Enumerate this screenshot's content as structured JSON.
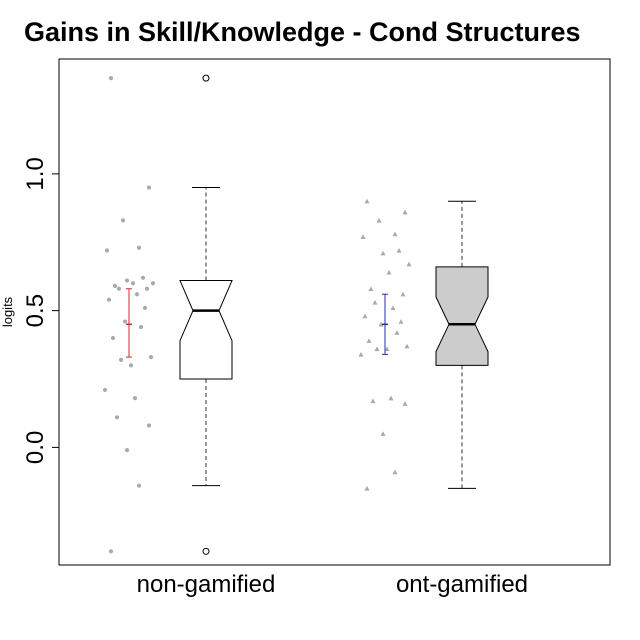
{
  "chart_data": {
    "type": "box",
    "title": "Gains in Skill/Knowledge - Cond Structures",
    "xlabel": "",
    "ylabel": "logits",
    "ylim": [
      -0.43,
      1.42
    ],
    "yticks": [
      0.0,
      0.5,
      1.0
    ],
    "ytick_labels": [
      "0.0",
      "0.5",
      "1.0"
    ],
    "categories": [
      "non-gamified",
      "ont-gamified"
    ],
    "boxes": [
      {
        "category": "non-gamified",
        "fill": "#ffffff",
        "median": 0.5,
        "q1": 0.25,
        "q3": 0.61,
        "notch_low": 0.39,
        "notch_high": 0.61,
        "whisker_low": -0.14,
        "whisker_high": 0.95,
        "outliers": [
          1.35,
          -0.38
        ],
        "mean": 0.45,
        "ci_low": 0.33,
        "ci_high": 0.58,
        "ci_color": "#d62728",
        "point_marker": "circle",
        "points": [
          1.35,
          0.95,
          0.83,
          0.73,
          0.72,
          0.62,
          0.61,
          0.6,
          0.6,
          0.59,
          0.58,
          0.58,
          0.56,
          0.54,
          0.51,
          0.46,
          0.44,
          0.4,
          0.33,
          0.32,
          0.3,
          0.21,
          0.18,
          0.11,
          0.08,
          -0.01,
          -0.14,
          -0.38
        ]
      },
      {
        "category": "ont-gamified",
        "fill": "#cccccc",
        "median": 0.45,
        "q1": 0.3,
        "q3": 0.66,
        "notch_low": 0.35,
        "notch_high": 0.55,
        "whisker_low": -0.15,
        "whisker_high": 0.9,
        "outliers": [],
        "mean": 0.45,
        "ci_low": 0.34,
        "ci_high": 0.56,
        "ci_color": "#2a2ab8",
        "point_marker": "triangle",
        "points": [
          0.9,
          0.86,
          0.83,
          0.78,
          0.77,
          0.72,
          0.71,
          0.67,
          0.64,
          0.58,
          0.56,
          0.53,
          0.51,
          0.48,
          0.46,
          0.45,
          0.42,
          0.39,
          0.37,
          0.36,
          0.36,
          0.34,
          0.18,
          0.17,
          0.16,
          0.05,
          -0.09,
          -0.15
        ]
      }
    ]
  }
}
